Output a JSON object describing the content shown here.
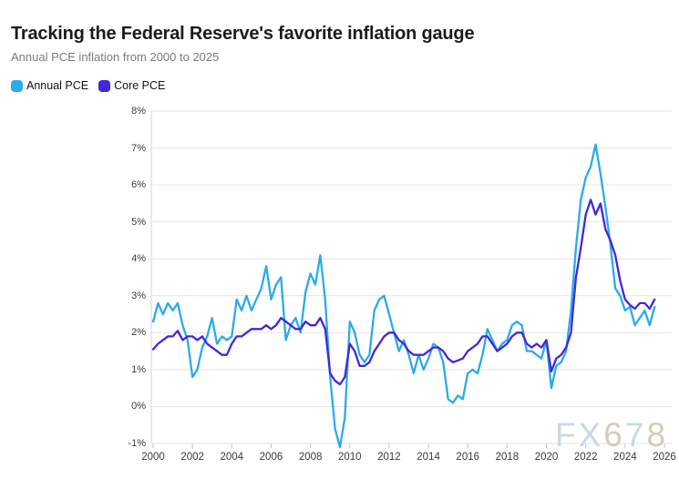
{
  "header": {
    "title": "Tracking the Federal Reserve's favorite inflation gauge",
    "subtitle": "Annual PCE inflation from 2000 to 2025"
  },
  "legend": [
    {
      "label": "Annual PCE",
      "color": "#2babe8"
    },
    {
      "label": "Core PCE",
      "color": "#4227dd"
    }
  ],
  "watermark": {
    "text": "FX678",
    "letter_colors": [
      "#cbd8e3",
      "#cbd8e3",
      "#d9cab8",
      "#cbd8e3",
      "#d9cab8"
    ]
  },
  "chart_data": {
    "type": "line",
    "title": "Tracking the Federal Reserve's favorite inflation gauge",
    "subtitle": "Annual PCE inflation from 2000 to 2025",
    "xlabel": "",
    "ylabel": "",
    "unit": "%",
    "grid": "horizontal",
    "legend_position": "top-left",
    "x_range": [
      2000,
      2026
    ],
    "y_range": [
      -1,
      8
    ],
    "x_ticks": [
      2000,
      2002,
      2004,
      2006,
      2008,
      2010,
      2012,
      2014,
      2016,
      2018,
      2020,
      2022,
      2024,
      2026
    ],
    "y_ticks": {
      "values": [
        8,
        7,
        6,
        5,
        4,
        3,
        2,
        1,
        0,
        -1
      ],
      "labels": [
        "8%",
        "7%",
        "6%",
        "5%",
        "4%",
        "3%",
        "2%",
        "1%",
        "0%",
        "-1%"
      ]
    },
    "x_start": 2000,
    "x_step": 0.25,
    "series": [
      {
        "name": "Annual PCE",
        "color": "#2babe8",
        "values": [
          2.3,
          2.8,
          2.5,
          2.8,
          2.6,
          2.8,
          2.2,
          1.8,
          0.8,
          1.0,
          1.6,
          1.9,
          2.4,
          1.7,
          1.9,
          1.8,
          1.9,
          2.9,
          2.6,
          3.0,
          2.6,
          2.9,
          3.2,
          3.8,
          2.9,
          3.3,
          3.5,
          1.8,
          2.2,
          2.4,
          2.0,
          3.1,
          3.6,
          3.3,
          4.1,
          2.9,
          0.8,
          -0.6,
          -1.1,
          -0.3,
          2.3,
          2.0,
          1.4,
          1.2,
          1.4,
          2.6,
          2.9,
          3.0,
          2.5,
          2.0,
          1.5,
          1.8,
          1.4,
          0.9,
          1.4,
          1.0,
          1.3,
          1.7,
          1.6,
          1.2,
          0.2,
          0.1,
          0.3,
          0.2,
          0.9,
          1.0,
          0.9,
          1.4,
          2.1,
          1.8,
          1.5,
          1.7,
          1.8,
          2.2,
          2.3,
          2.2,
          1.5,
          1.5,
          1.4,
          1.3,
          1.8,
          0.5,
          1.1,
          1.2,
          1.5,
          2.6,
          4.3,
          5.6,
          6.2,
          6.5,
          7.1,
          6.3,
          5.4,
          4.4,
          3.2,
          3.0,
          2.6,
          2.7,
          2.2,
          2.4,
          2.6,
          2.2,
          2.7
        ]
      },
      {
        "name": "Core PCE",
        "color": "#4227dd",
        "values": [
          1.55,
          1.7,
          1.8,
          1.9,
          1.9,
          2.05,
          1.8,
          1.9,
          1.9,
          1.8,
          1.9,
          1.7,
          1.6,
          1.5,
          1.4,
          1.4,
          1.7,
          1.9,
          1.9,
          2.0,
          2.1,
          2.1,
          2.1,
          2.2,
          2.1,
          2.2,
          2.4,
          2.3,
          2.2,
          2.1,
          2.1,
          2.3,
          2.2,
          2.2,
          2.4,
          2.1,
          0.9,
          0.7,
          0.6,
          0.8,
          1.7,
          1.5,
          1.1,
          1.1,
          1.2,
          1.5,
          1.7,
          1.9,
          2.0,
          2.0,
          1.8,
          1.7,
          1.5,
          1.4,
          1.4,
          1.4,
          1.5,
          1.6,
          1.6,
          1.5,
          1.3,
          1.2,
          1.25,
          1.3,
          1.5,
          1.6,
          1.7,
          1.9,
          1.9,
          1.7,
          1.5,
          1.6,
          1.7,
          1.9,
          2.0,
          2.0,
          1.7,
          1.6,
          1.7,
          1.6,
          1.8,
          0.95,
          1.3,
          1.4,
          1.6,
          2.0,
          3.5,
          4.3,
          5.2,
          5.6,
          5.2,
          5.5,
          4.8,
          4.5,
          4.1,
          3.4,
          2.9,
          2.75,
          2.65,
          2.8,
          2.8,
          2.65,
          2.9
        ]
      }
    ]
  }
}
